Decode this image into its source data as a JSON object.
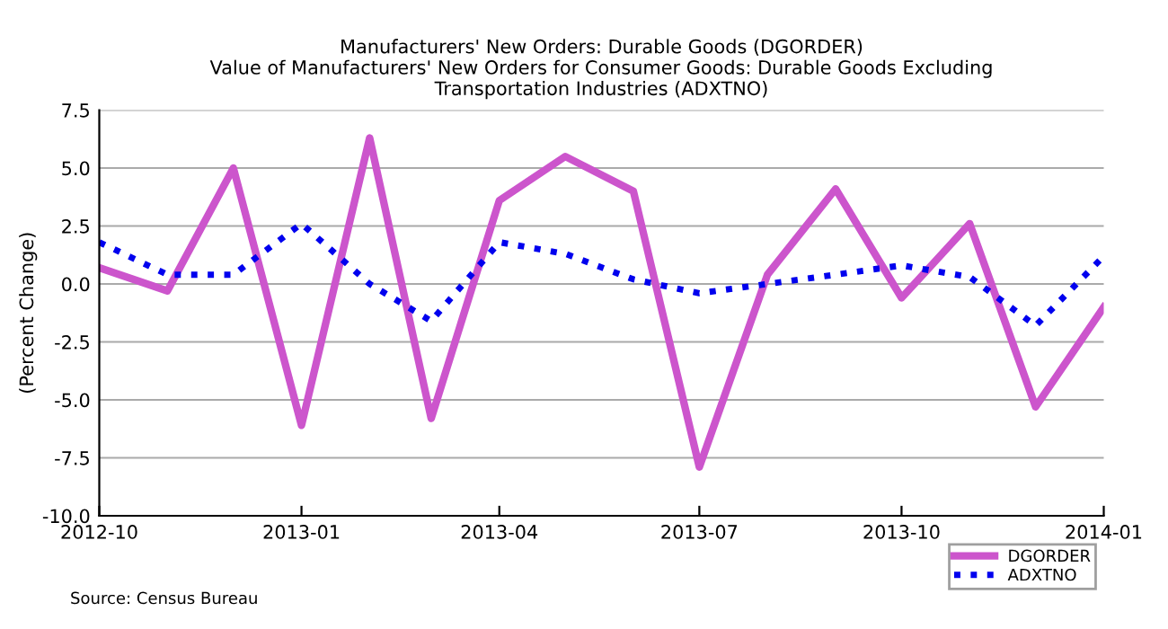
{
  "chart_data": {
    "type": "line",
    "title": "Manufacturers' New Orders: Durable Goods (DGORDER)\nValue of Manufacturers' New Orders for Consumer Goods: Durable Goods Excluding\nTransportation Industries (ADXTNO)",
    "ylabel": "(Percent Change)",
    "x": [
      "2012-10",
      "2012-11",
      "2012-12",
      "2013-01",
      "2013-02",
      "2013-03",
      "2013-04",
      "2013-05",
      "2013-06",
      "2013-07",
      "2013-08",
      "2013-09",
      "2013-10",
      "2013-11",
      "2013-12",
      "2014-01"
    ],
    "series": [
      {
        "name": "DGORDER",
        "color": "#cc55cc",
        "line_style": "solid",
        "values": [
          0.7,
          -0.3,
          5.0,
          -6.1,
          6.3,
          -5.8,
          3.6,
          5.5,
          4.0,
          -7.9,
          0.4,
          4.1,
          -0.6,
          2.6,
          -5.3,
          -1.0
        ]
      },
      {
        "name": "ADXTNO",
        "color": "#0000ee",
        "line_style": "dotted",
        "values": [
          1.8,
          0.4,
          0.4,
          2.6,
          0.0,
          -1.6,
          1.8,
          1.3,
          0.2,
          -0.4,
          0.0,
          0.4,
          0.8,
          0.3,
          -1.8,
          1.2
        ]
      }
    ],
    "xlim": [
      "2012-10",
      "2014-01"
    ],
    "xticks": [
      "2012-10",
      "2013-01",
      "2013-04",
      "2013-07",
      "2013-10",
      "2014-01"
    ],
    "ylim": [
      -10,
      7.5
    ],
    "yticks": [
      {
        "value": -10,
        "label": "-10.0"
      },
      {
        "value": -7.5,
        "label": "-7.5"
      },
      {
        "value": -5,
        "label": "-5.0"
      },
      {
        "value": -2.5,
        "label": "-2.5"
      },
      {
        "value": 0,
        "label": "0.0"
      },
      {
        "value": 2.5,
        "label": "2.5"
      },
      {
        "value": 5,
        "label": "5.0"
      },
      {
        "value": 7.5,
        "label": "7.5"
      }
    ],
    "grid": "y",
    "legend": "bottom right",
    "annotations": [
      "Source: Census Bureau"
    ]
  }
}
